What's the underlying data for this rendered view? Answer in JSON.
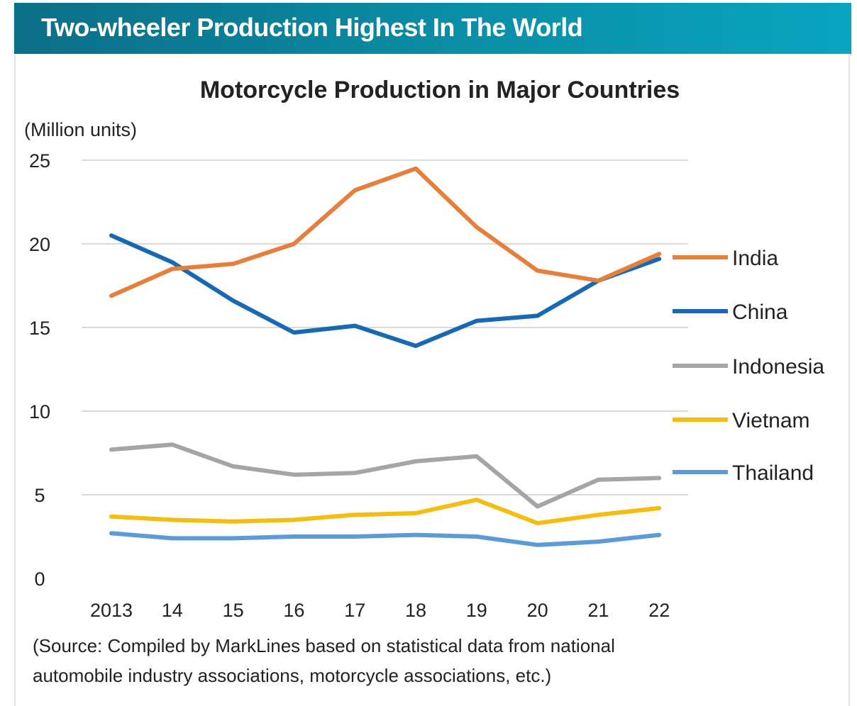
{
  "header": {
    "title": "Two-wheeler Production Highest In The World"
  },
  "chart_data": {
    "type": "line",
    "title": "Motorcycle Production in Major Countries",
    "ylabel": "(Million units)",
    "xlabel": "",
    "categories": [
      "2013",
      "14",
      "15",
      "16",
      "17",
      "18",
      "19",
      "20",
      "21",
      "22"
    ],
    "ylim": [
      0,
      25
    ],
    "yticks": [
      0,
      5,
      10,
      15,
      20,
      25
    ],
    "grid": true,
    "legend_position": "right",
    "series": [
      {
        "name": "India",
        "color": "#e57f3c",
        "values": [
          16.9,
          18.5,
          18.8,
          20.0,
          23.2,
          24.5,
          21.0,
          18.4,
          17.8,
          19.4
        ]
      },
      {
        "name": "China",
        "color": "#1769b4",
        "values": [
          20.5,
          18.9,
          16.6,
          14.7,
          15.1,
          13.9,
          15.4,
          15.7,
          17.8,
          19.1
        ]
      },
      {
        "name": "Indonesia",
        "color": "#a5a5a5",
        "values": [
          7.7,
          8.0,
          6.7,
          6.2,
          6.3,
          7.0,
          7.3,
          4.3,
          5.9,
          6.0
        ]
      },
      {
        "name": "Vietnam",
        "color": "#f5bd11",
        "values": [
          3.7,
          3.5,
          3.4,
          3.5,
          3.8,
          3.9,
          4.7,
          3.3,
          3.8,
          4.2
        ]
      },
      {
        "name": "Thailand",
        "color": "#5c9bd8",
        "values": [
          2.7,
          2.4,
          2.4,
          2.5,
          2.5,
          2.6,
          2.5,
          2.0,
          2.2,
          2.6
        ]
      }
    ],
    "source_lines": [
      "(Source: Compiled by MarkLines based on statistical data from national",
      "automobile industry associations, motorcycle associations, etc.)"
    ]
  }
}
